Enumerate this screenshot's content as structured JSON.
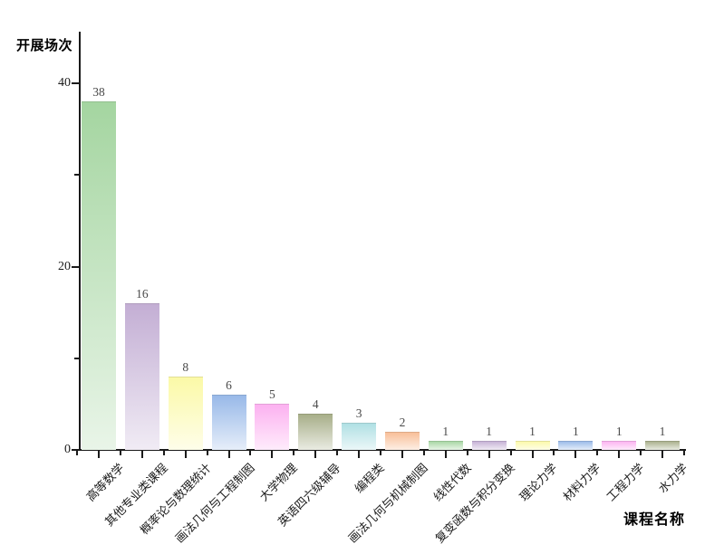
{
  "chart_data": {
    "type": "bar",
    "title": "",
    "xlabel": "课程名称",
    "ylabel": "开展场次",
    "categories": [
      "高等数学",
      "其他专业类课程",
      "概率论与数理统计",
      "画法几何与工程制图",
      "大学物理",
      "英语四六级辅导",
      "编程类",
      "画法几何与机械制图",
      "线性代数",
      "复变函数与积分变换",
      "理论力学",
      "材料力学",
      "工程力学",
      "水力学"
    ],
    "values": [
      38,
      16,
      8,
      6,
      5,
      4,
      3,
      2,
      1,
      1,
      1,
      1,
      1,
      1
    ],
    "bar_colors": [
      "#a4d5a0",
      "#c3aed4",
      "#fbf9a6",
      "#97b8e8",
      "#fcb0f0",
      "#a6ad87",
      "#aedfe3",
      "#f8bd95",
      "#a4d5a0",
      "#c3aed4",
      "#fbf9a6",
      "#97b8e8",
      "#fcb0f0",
      "#a6ad87"
    ],
    "bar_gradient_fade_to": "#ffffff",
    "value_labels_shown": true,
    "ylim": [
      0,
      40
    ],
    "yticks": [
      0,
      20,
      40
    ],
    "minor_yticks": [
      10,
      30
    ],
    "grid": false,
    "legend_position": "none",
    "axis_color": "#1a1a1a",
    "background": "#ffffff",
    "xtick_label_rotation_deg": 45
  }
}
